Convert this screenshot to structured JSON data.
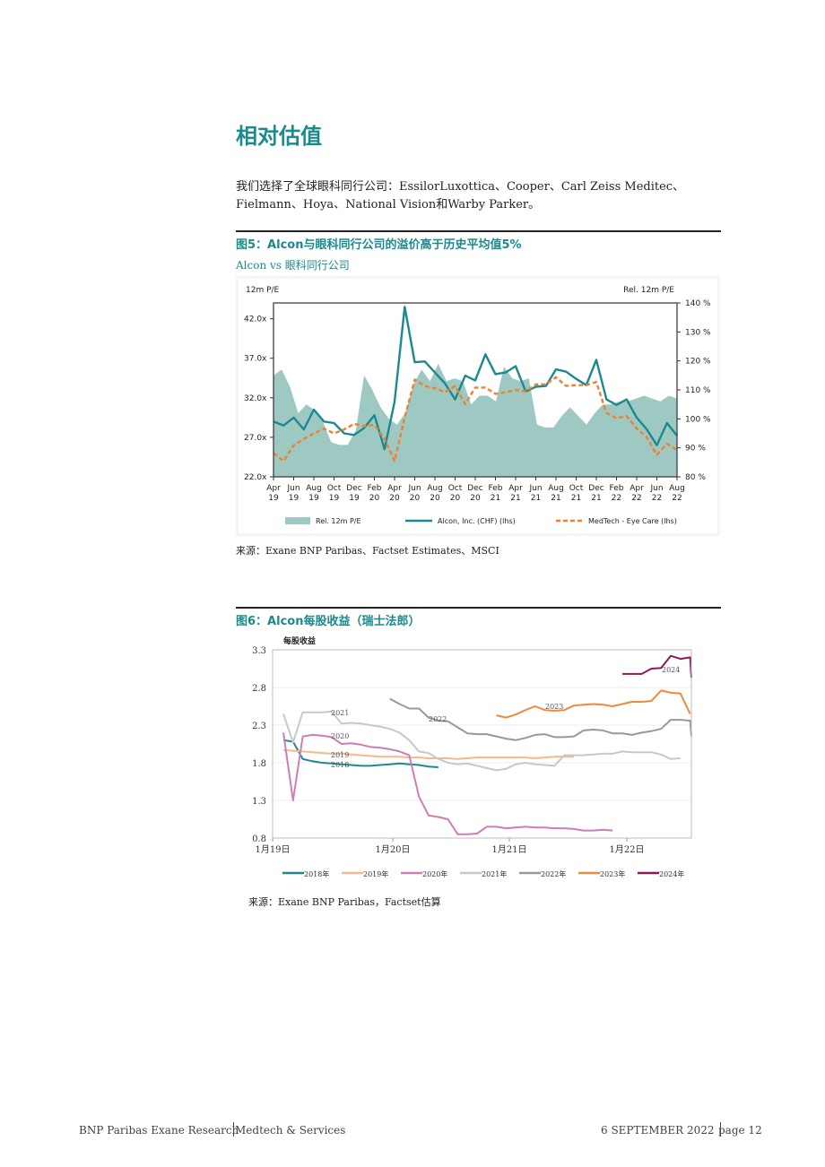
{
  "section_title": "相对估值",
  "intro_text": "我们选择了全球眼科同行公司：EssilorLuxottica、Cooper、Carl Zeiss Meditec、Fielmann、Hoya、National Vision和Warby Parker。",
  "figure5": {
    "title": "图5：Alcon与眼科同行公司的溢价高于历史平均值5%",
    "subtitle": "Alcon vs 眼科同行公司",
    "source": "来源：Exane BNP Paribas、Factset Estimates、MSCI"
  },
  "figure6": {
    "title": "图6：Alcon每股收益（瑞士法郎）",
    "source": "来源：Exane BNP Paribas，Factset估算"
  },
  "footer": {
    "publisher": "BNP Paribas Exane Research",
    "sector": "Medtech & Services",
    "date": "6 SEPTEMBER 2022",
    "page": "page 12"
  },
  "chart_data": [
    {
      "type": "line",
      "title": "Alcon vs 眼科同行公司",
      "ylabel_left": "12m P/E",
      "ylabel_right": "Rel. 12m P/E",
      "ylim_left": [
        22,
        44
      ],
      "ylim_right": [
        80,
        140
      ],
      "yticks_left": [
        "42.0x",
        "37.0x",
        "32.0x",
        "27.0x",
        "22.0x"
      ],
      "yticks_right": [
        "140 %",
        "130 %",
        "120 %",
        "110 %",
        "100 %",
        "90 %",
        "80 %"
      ],
      "xtick_labels": [
        [
          "Apr",
          "19"
        ],
        [
          "Jun",
          "19"
        ],
        [
          "Aug",
          "19"
        ],
        [
          "Oct",
          "19"
        ],
        [
          "Dec",
          "19"
        ],
        [
          "Feb",
          "20"
        ],
        [
          "Apr",
          "20"
        ],
        [
          "Jun",
          "20"
        ],
        [
          "Aug",
          "20"
        ],
        [
          "Oct",
          "20"
        ],
        [
          "Dec",
          "20"
        ],
        [
          "Feb",
          "21"
        ],
        [
          "Apr",
          "21"
        ],
        [
          "Jun",
          "21"
        ],
        [
          "Aug",
          "21"
        ],
        [
          "Oct",
          "21"
        ],
        [
          "Dec",
          "21"
        ],
        [
          "Feb",
          "22"
        ],
        [
          "Apr",
          "22"
        ],
        [
          "Jun",
          "22"
        ],
        [
          "Aug",
          "22"
        ]
      ],
      "legend": [
        "Rel. 12m P/E",
        "Alcon, Inc. (CHF) (lhs)",
        "MedTech - Eye Care (lhs)"
      ],
      "colors": {
        "rel": "#9ec8c2",
        "alcon": "#1b8a8f",
        "medtech": "#f08030"
      },
      "series": [
        {
          "name": "Rel. 12m P/E",
          "axis": "right",
          "values": [
            115,
            117,
            111,
            102,
            105,
            103,
            99,
            92,
            91,
            91,
            96,
            115,
            110,
            104,
            100,
            98,
            102,
            112,
            117,
            113,
            119,
            113,
            114,
            113,
            105,
            108,
            108,
            106,
            118,
            114,
            113,
            114,
            98,
            97,
            97,
            101,
            104,
            101,
            98,
            102,
            105,
            105,
            106,
            106,
            107,
            108,
            107,
            106,
            108,
            107
          ]
        },
        {
          "name": "Alcon, Inc. (CHF) (lhs)",
          "axis": "left",
          "values": [
            29,
            28.5,
            29.5,
            28,
            30.5,
            29,
            28.8,
            27.5,
            27.3,
            28.2,
            29.8,
            25.5,
            31.5,
            43.5,
            36.5,
            36.6,
            35.2,
            33.8,
            31.8,
            34.8,
            34.2,
            37.5,
            35,
            35.2,
            36,
            32.8,
            33.4,
            33.5,
            35.6,
            35.3,
            34.4,
            33.6,
            36.8,
            31.8,
            31.1,
            31.8,
            29.5,
            28,
            26,
            28.8,
            27.2
          ]
        },
        {
          "name": "MedTech - Eye Care (lhs)",
          "axis": "left",
          "values": [
            25,
            24,
            26,
            26.8,
            27.5,
            28.1,
            27.5,
            28,
            28.7,
            28.4,
            28.6,
            26.8,
            24,
            29.5,
            34.3,
            33.5,
            33.2,
            32.7,
            33.5,
            31.2,
            33.3,
            33.3,
            32.5,
            32.7,
            33,
            32.8,
            33.7,
            33.7,
            34.6,
            33.5,
            33.6,
            33.6,
            34,
            30.1,
            29.4,
            29.7,
            28.1,
            27,
            24.8,
            26.2,
            25.4
          ]
        }
      ]
    },
    {
      "type": "line",
      "title": "每股收益",
      "ylim": [
        0.8,
        3.3
      ],
      "yticks": [
        "3.3",
        "2.8",
        "2.3",
        "1.8",
        "1.3",
        "0.8"
      ],
      "x_labels": [
        "1月19日",
        "1月20日",
        "1月21日",
        "1月22日"
      ],
      "series_labels": [
        "2018",
        "2019",
        "2020",
        "2021",
        "2022",
        "2023",
        "2024"
      ],
      "legend": [
        "2018年",
        "2019年",
        "2020年",
        "2021年",
        "2022年",
        "2023年",
        "2024年"
      ],
      "colors": [
        "#1b8a8f",
        "#f8b88b",
        "#cc7fb5",
        "#c8c8c8",
        "#999999",
        "#f08a3a",
        "#8b1a5a"
      ],
      "series": [
        {
          "name": "2018年",
          "start": 0,
          "values": [
            2.1,
            2.08,
            1.85,
            1.82,
            1.8,
            1.79,
            1.78,
            1.77,
            1.76,
            1.76,
            1.77,
            1.78,
            1.79,
            1.78,
            1.77,
            1.75,
            1.74
          ]
        },
        {
          "name": "2019年",
          "start": 0,
          "values": [
            1.97,
            1.96,
            1.95,
            1.94,
            1.93,
            1.92,
            1.92,
            1.91,
            1.9,
            1.89,
            1.88,
            1.88,
            1.88,
            1.87,
            1.87,
            1.86,
            1.86,
            1.86,
            1.85,
            1.86,
            1.87,
            1.87,
            1.87,
            1.87,
            1.87,
            1.87,
            1.86,
            1.87,
            1.88,
            1.88,
            1.88
          ]
        },
        {
          "name": "2020年",
          "start": 0,
          "values": [
            2.2,
            1.3,
            2.15,
            2.17,
            2.16,
            2.14,
            2.05,
            2.06,
            2.04,
            2.01,
            2.0,
            1.98,
            1.95,
            1.9,
            1.35,
            1.1,
            1.08,
            1.05,
            0.85,
            0.85,
            0.86,
            0.95,
            0.95,
            0.93,
            0.94,
            0.95,
            0.94,
            0.94,
            0.93,
            0.93,
            0.92,
            0.9,
            0.9,
            0.91,
            0.9
          ]
        },
        {
          "name": "2021年",
          "start": 0,
          "values": [
            2.45,
            2.07,
            2.47,
            2.47,
            2.47,
            2.48,
            2.32,
            2.33,
            2.32,
            2.3,
            2.28,
            2.25,
            2.2,
            2.1,
            1.95,
            1.93,
            1.85,
            1.8,
            1.78,
            1.79,
            1.76,
            1.73,
            1.7,
            1.72,
            1.78,
            1.8,
            1.78,
            1.77,
            1.76,
            1.9,
            1.9,
            1.9,
            1.91,
            1.92,
            1.92,
            1.95,
            1.94,
            1.94,
            1.94,
            1.91,
            1.85,
            1.86
          ]
        },
        {
          "name": "2022年",
          "start": 11,
          "values": [
            2.65,
            2.58,
            2.52,
            2.52,
            2.4,
            2.36,
            2.35,
            2.27,
            2.19,
            2.18,
            2.18,
            2.15,
            2.12,
            2.1,
            2.13,
            2.17,
            2.18,
            2.14,
            2.14,
            2.15,
            2.23,
            2.24,
            2.23,
            2.19,
            2.19,
            2.17,
            2.2,
            2.22,
            2.25,
            2.37,
            2.37,
            2.36,
            2.15
          ]
        },
        {
          "name": "2023年",
          "start": 22,
          "values": [
            2.43,
            2.4,
            2.44,
            2.5,
            2.55,
            2.5,
            2.49,
            2.5,
            2.56,
            2.57,
            2.58,
            2.57,
            2.55,
            2.58,
            2.61,
            2.61,
            2.62,
            2.76,
            2.73,
            2.72,
            2.45
          ]
        },
        {
          "name": "2024年",
          "start": 35,
          "values": [
            2.98,
            2.98,
            2.98,
            3.05,
            3.06,
            3.22,
            3.18,
            3.2,
            2.93
          ]
        }
      ]
    }
  ]
}
